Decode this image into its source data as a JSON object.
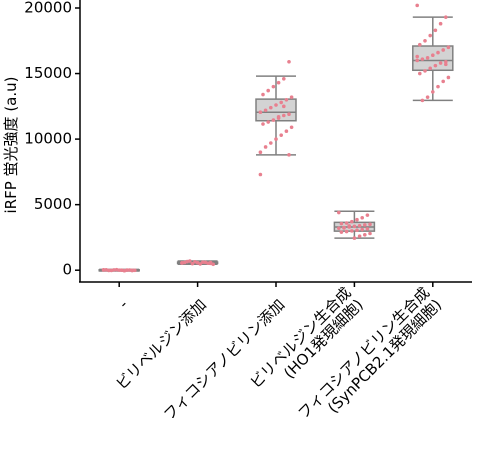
{
  "chart_data": {
    "type": "box",
    "y_label": "iRFP 蛍光強度 (a.u)",
    "categories": [
      [
        "-"
      ],
      [
        "ビリベルジン添加"
      ],
      [
        "フィコシアノビリン添加"
      ],
      [
        "ビリベルジン生合成",
        "(HO1発現細胞)"
      ],
      [
        "フィコシアノビリン生合成",
        "(SynPCB2.1発現細胞)"
      ]
    ],
    "ylim": [
      -900,
      20000
    ],
    "yticks": [
      0,
      5000,
      10000,
      15000,
      20000
    ],
    "box_color": "#d3d3d3",
    "line_color": "#808080",
    "point_color": "#e8808f",
    "boxes": [
      {
        "whislo": -60,
        "q1": -30,
        "med": 0,
        "q3": 30,
        "whishi": 60,
        "points": [
          20,
          -30,
          10,
          0,
          40,
          -20,
          30,
          -10,
          15,
          -40,
          5,
          25,
          -15,
          35,
          -5
        ]
      },
      {
        "whislo": 450,
        "q1": 520,
        "med": 570,
        "q3": 620,
        "whishi": 700,
        "points": [
          560,
          520,
          600,
          480,
          640,
          700,
          590,
          450,
          530,
          610,
          570,
          500,
          660,
          540,
          580
        ]
      },
      {
        "whislo": 8800,
        "q1": 11400,
        "med": 12050,
        "q3": 13050,
        "whishi": 14800,
        "points": [
          7300,
          15900,
          14600,
          14300,
          14000,
          13700,
          13400,
          13200,
          13000,
          12800,
          12600,
          12400,
          12200,
          12050,
          11900,
          11800,
          11600,
          11450,
          11300,
          11150,
          10900,
          10600,
          10300,
          10000,
          9700,
          9400,
          9000,
          8800,
          12500,
          11700
        ]
      },
      {
        "whislo": 2450,
        "q1": 2980,
        "med": 3300,
        "q3": 3650,
        "whishi": 4500,
        "points": [
          4400,
          4200,
          4000,
          3850,
          3700,
          3600,
          3550,
          3500,
          3450,
          3400,
          3350,
          3300,
          3250,
          3200,
          3150,
          3100,
          3050,
          3000,
          2950,
          2900,
          2800,
          2700,
          2600,
          2450,
          3380,
          3220
        ]
      },
      {
        "whislo": 12950,
        "q1": 15250,
        "med": 16000,
        "q3": 17100,
        "whishi": 19300,
        "points": [
          20200,
          19300,
          18800,
          18300,
          17900,
          17500,
          17200,
          17000,
          16800,
          16600,
          16400,
          16200,
          16100,
          16000,
          15900,
          15800,
          15600,
          15400,
          15200,
          15000,
          14700,
          14400,
          14000,
          13600,
          13200,
          12950,
          16300,
          15700
        ]
      }
    ]
  }
}
